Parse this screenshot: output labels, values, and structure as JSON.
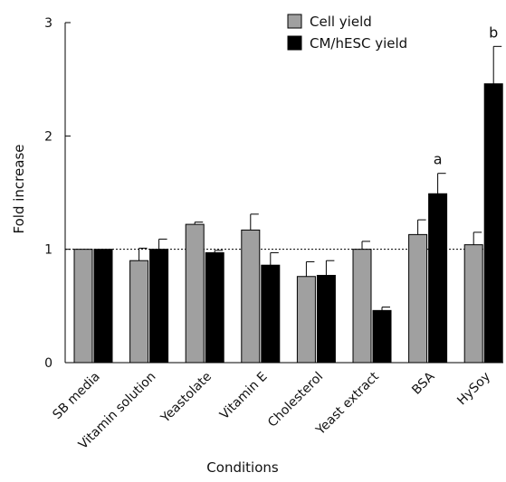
{
  "chart_data": {
    "type": "bar",
    "xlabel": "Conditions",
    "ylabel": "Fold increase",
    "ylim": [
      0,
      3
    ],
    "yticks": [
      0,
      1,
      2,
      3
    ],
    "reference_line": 1,
    "categories": [
      "SB media",
      "Vitamin solution",
      "Yeastolate",
      "Vitamin E",
      "Cholesterol",
      "Yeast extract",
      "BSA",
      "HySoy"
    ],
    "series": [
      {
        "name": "Cell yield",
        "color": "#a0a0a0",
        "values": [
          1.0,
          0.9,
          1.22,
          1.17,
          0.76,
          1.0,
          1.13,
          1.04
        ],
        "errors": [
          0.0,
          0.11,
          0.02,
          0.14,
          0.13,
          0.07,
          0.13,
          0.11
        ]
      },
      {
        "name": "CM/hESC yield",
        "color": "#000000",
        "values": [
          1.0,
          1.0,
          0.97,
          0.86,
          0.77,
          0.46,
          1.49,
          2.46
        ],
        "errors": [
          0.0,
          0.09,
          0.02,
          0.11,
          0.13,
          0.03,
          0.18,
          0.33
        ]
      }
    ],
    "annotations": [
      {
        "category": "BSA",
        "series": "CM/hESC yield",
        "text": "a"
      },
      {
        "category": "HySoy",
        "series": "CM/hESC yield",
        "text": "b"
      }
    ],
    "legend_position": "top-right"
  }
}
